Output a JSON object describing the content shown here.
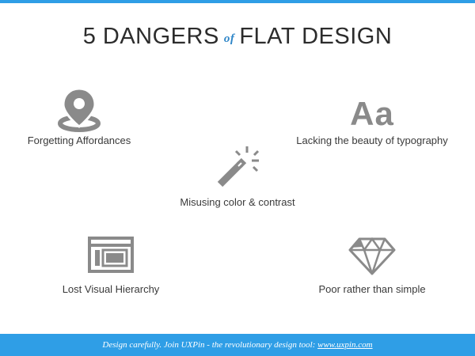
{
  "slide": {
    "title_part1": "5 DANGERS",
    "title_of": "of",
    "title_part2": "FLAT DESIGN"
  },
  "items": [
    {
      "label": "Forgetting  Affordances",
      "icon": "map-pin-icon"
    },
    {
      "label": "Lacking the beauty of typography",
      "icon": "typography-aa-icon"
    },
    {
      "label": "Misusing color & contrast",
      "icon": "magic-wand-icon"
    },
    {
      "label": "Lost Visual Hierarchy",
      "icon": "layout-window-icon"
    },
    {
      "label": "Poor rather than simple",
      "icon": "diamond-icon"
    }
  ],
  "icon_glyphs": {
    "typography": "Aa"
  },
  "footer": {
    "text": "Design carefully. Join UXPin - the revolutionary design tool: ",
    "link": "www.uxpin.com"
  },
  "colors": {
    "accent": "#2f9ee6",
    "icon_gray": "#8a8a8a",
    "text": "#3a3a3a"
  }
}
